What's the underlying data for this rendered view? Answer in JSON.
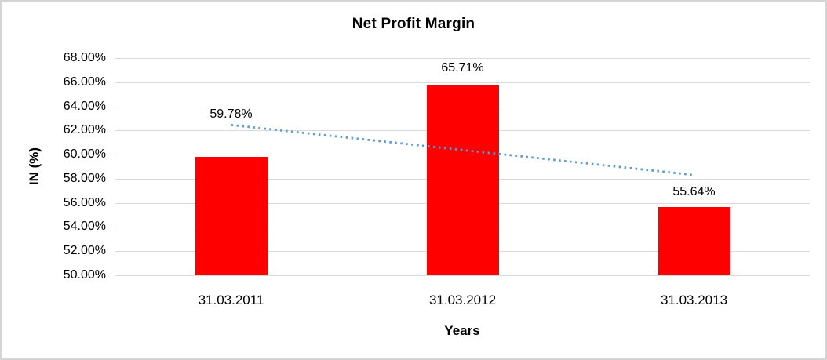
{
  "chart": {
    "background": "#ffffff",
    "border_color": "#d5d5d5",
    "text_color": "#000000"
  },
  "chart_data": {
    "type": "bar",
    "title": "Net Profit Margin",
    "xlabel": "Years",
    "ylabel": "IN (%)",
    "categories": [
      "31.03.2011",
      "31.03.2012",
      "31.03.2013"
    ],
    "values": [
      59.78,
      65.71,
      55.64
    ],
    "data_labels": [
      "59.78%",
      "65.71%",
      "55.64%"
    ],
    "ylim": [
      50,
      68
    ],
    "ytick_step": 2,
    "ytick_labels": [
      "50.00%",
      "52.00%",
      "54.00%",
      "56.00%",
      "58.00%",
      "60.00%",
      "62.00%",
      "64.00%",
      "66.00%",
      "68.00%"
    ],
    "grid": true,
    "legend": "none",
    "bar_color": "#ff0000",
    "gridline_color": "#d9d9d9",
    "trendline": {
      "type": "linear",
      "style": "dotted",
      "color": "#5b9bd5",
      "start_value": 62.45,
      "end_value": 58.31
    }
  }
}
